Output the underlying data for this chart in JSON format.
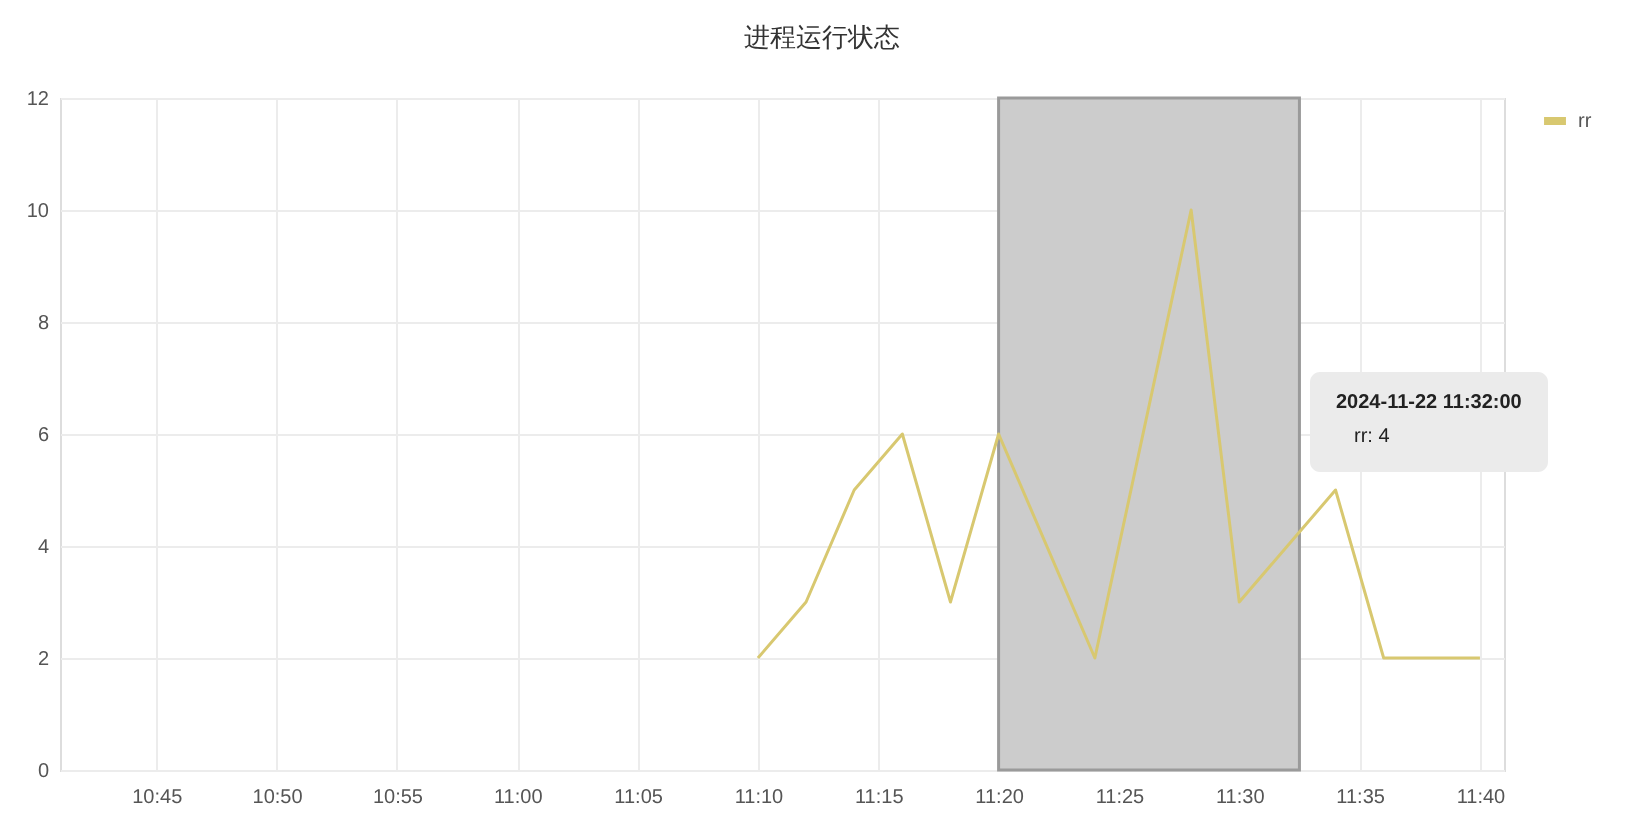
{
  "chart_data": {
    "type": "line",
    "title": "进程运行状态",
    "x": [
      "2024-11-22T11:10",
      "2024-11-22T11:12",
      "2024-11-22T11:14",
      "2024-11-22T11:16",
      "2024-11-22T11:18",
      "2024-11-22T11:20",
      "2024-11-22T11:24",
      "2024-11-22T11:28",
      "2024-11-22T11:30",
      "2024-11-22T11:32",
      "2024-11-22T11:34",
      "2024-11-22T11:36",
      "2024-11-22T11:40"
    ],
    "series": [
      {
        "name": "rr",
        "color": "#d8c870",
        "values": [
          2,
          3,
          5,
          6,
          3,
          6,
          2,
          10,
          3,
          4,
          5,
          2,
          2
        ]
      }
    ],
    "xlim": [
      "2024-11-22T10:41",
      "2024-11-22T11:41"
    ],
    "xticks": [
      {
        "value": "2024-11-22T10:45",
        "label": "10:45"
      },
      {
        "value": "2024-11-22T10:50",
        "label": "10:50"
      },
      {
        "value": "2024-11-22T10:55",
        "label": "10:55"
      },
      {
        "value": "2024-11-22T11:00",
        "label": "11:00"
      },
      {
        "value": "2024-11-22T11:05",
        "label": "11:05"
      },
      {
        "value": "2024-11-22T11:10",
        "label": "11:10"
      },
      {
        "value": "2024-11-22T11:15",
        "label": "11:15"
      },
      {
        "value": "2024-11-22T11:20",
        "label": "11:20"
      },
      {
        "value": "2024-11-22T11:25",
        "label": "11:25"
      },
      {
        "value": "2024-11-22T11:30",
        "label": "11:30"
      },
      {
        "value": "2024-11-22T11:35",
        "label": "11:35"
      },
      {
        "value": "2024-11-22T11:40",
        "label": "11:40"
      }
    ],
    "ylim": [
      0,
      12
    ],
    "yticks": [
      0,
      2,
      4,
      6,
      8,
      10,
      12
    ],
    "grid": true,
    "legend": "top right",
    "marker": "none",
    "line_style": "solid",
    "bands": [
      {
        "axis": "x",
        "from": "2024-11-22T11:20",
        "to": "2024-11-22T11:32:30",
        "color": "#cccccc"
      }
    ],
    "annotations": [
      "2024-11-22 11:32:00",
      "rr:   4"
    ]
  }
}
